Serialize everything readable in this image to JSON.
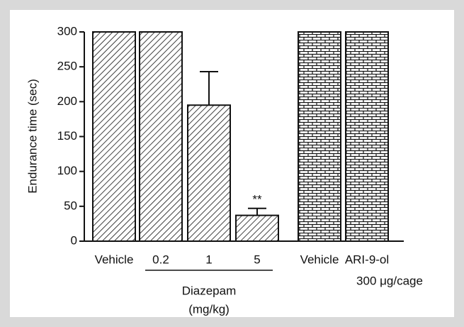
{
  "chart_data": {
    "type": "bar",
    "y_label": "Endurance time (sec)",
    "categories": [
      "Vehicle",
      "0.2",
      "1",
      "5",
      "Vehicle",
      "ARI-9-ol"
    ],
    "category_sublabels": [
      null,
      null,
      null,
      null,
      null,
      "300 μg/cage"
    ],
    "values": [
      300,
      300,
      195,
      37,
      300,
      300
    ],
    "errors": [
      null,
      null,
      48,
      10,
      null,
      null
    ],
    "value_labels": [
      null,
      null,
      null,
      "**",
      null,
      null
    ],
    "patterns": [
      "diagonal",
      "diagonal",
      "diagonal",
      "diagonal",
      "brick",
      "brick"
    ],
    "group_label": [
      "Diazepam",
      "(mg/kg)"
    ],
    "color": "#111111",
    "ylim": [
      0,
      300
    ],
    "yticks": [
      0,
      50,
      100,
      150,
      200,
      250,
      300
    ]
  }
}
